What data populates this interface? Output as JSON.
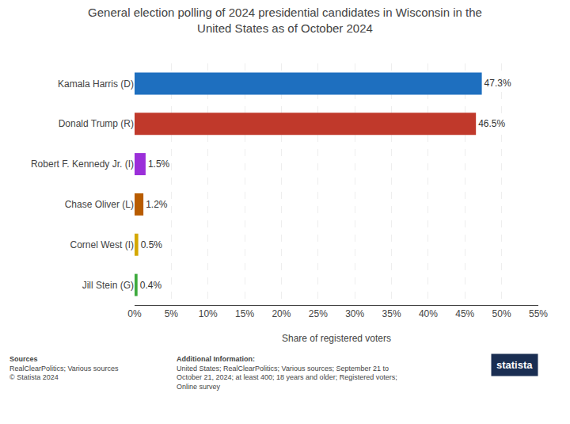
{
  "chart_data": {
    "type": "bar",
    "orientation": "horizontal",
    "title": "General election polling of 2024 presidential candidates in Wisconsin in the\nUnited States as of October 2024",
    "categories": [
      "Kamala Harris (D)",
      "Donald Trump (R)",
      "Robert F. Kennedy Jr. (I)",
      "Chase Oliver (L)",
      "Cornel West (I)",
      "Jill Stein (G)"
    ],
    "values": [
      47.3,
      46.5,
      1.5,
      1.2,
      0.5,
      0.4
    ],
    "value_labels": [
      "47.3%",
      "46.5%",
      "1.5%",
      "1.2%",
      "0.5%",
      "0.4%"
    ],
    "data_labels": true,
    "colors": [
      "#1E6FBF",
      "#C0392B",
      "#9B2FD9",
      "#B85C00",
      "#D4A800",
      "#3DAA3D"
    ],
    "xlabel": "Share of registered voters",
    "xlim": [
      0,
      55
    ],
    "xticks": [
      {
        "value": 0,
        "label": "0%"
      },
      {
        "value": 5,
        "label": "5%"
      },
      {
        "value": 10,
        "label": "10%"
      },
      {
        "value": 15,
        "label": "15%"
      },
      {
        "value": 20,
        "label": "20%"
      },
      {
        "value": 25,
        "label": "25%"
      },
      {
        "value": 30,
        "label": "30%"
      },
      {
        "value": 35,
        "label": "35%"
      },
      {
        "value": 40,
        "label": "40%"
      },
      {
        "value": 45,
        "label": "45%"
      },
      {
        "value": 50,
        "label": "50%"
      },
      {
        "value": 55,
        "label": "55%"
      }
    ],
    "grid": true,
    "annotations": [
      {
        "heading": "Sources",
        "text": "RealClearPolitics; Various sources\n© Statista 2024"
      },
      {
        "heading": "Additional Information:",
        "text": "United States; RealClearPolitics; Various sources; September 21 to\nOctober 21, 2024; at least 400; 18 years and older; Registered voters;\nOnline survey"
      },
      {
        "text": "statista"
      }
    ]
  }
}
